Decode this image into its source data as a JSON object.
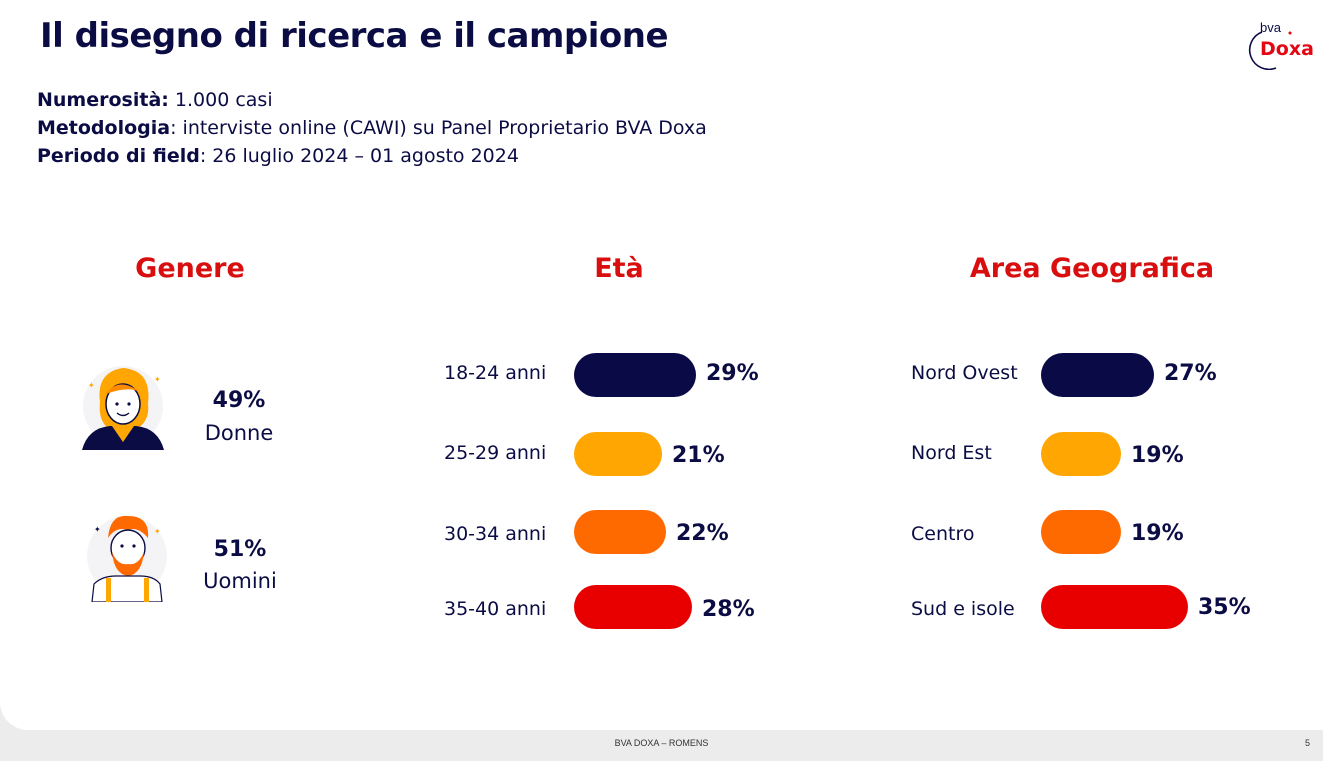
{
  "slide": {
    "title": "Il disegno di ricerca e il campione",
    "logo": {
      "top_text": "bva",
      "bottom_text": "Doxa"
    },
    "info": [
      {
        "label": "Numerosità:",
        "value": " 1.000 casi"
      },
      {
        "label": "Metodologia",
        "value": ": interviste online (CAWI) su Panel Proprietario BVA Doxa"
      },
      {
        "label": "Periodo di field",
        "value": ": 26 luglio 2024 – 01 agosto 2024"
      }
    ],
    "footer": "BVA DOXA – ROMENS",
    "page_number": "5"
  },
  "colors": {
    "navy": "#0a0a46",
    "yellow": "#ffa602",
    "orange": "#ff6a00",
    "red": "#e80000",
    "title_red": "#d90f0f"
  },
  "chart_data": [
    {
      "type": "pictogram",
      "title": "Genere",
      "categories": [
        "Donne",
        "Uomini"
      ],
      "values": [
        49,
        51
      ],
      "value_labels": [
        "49%",
        "51%"
      ],
      "icons": [
        "woman-avatar-icon",
        "man-avatar-icon"
      ]
    },
    {
      "type": "bar",
      "orientation": "horizontal",
      "title": "Età",
      "categories": [
        "18-24 anni",
        "25-29 anni",
        "30-34 anni",
        "35-40 anni"
      ],
      "values": [
        29,
        21,
        22,
        28
      ],
      "value_labels": [
        "29%",
        "21%",
        "22%",
        "28%"
      ],
      "bar_colors": [
        "#0a0a46",
        "#ffa602",
        "#ff6a00",
        "#e80000"
      ]
    },
    {
      "type": "bar",
      "orientation": "horizontal",
      "title": "Area Geografica",
      "categories": [
        "Nord Ovest",
        "Nord Est",
        "Centro",
        "Sud e isole"
      ],
      "values": [
        27,
        19,
        19,
        35
      ],
      "value_labels": [
        "27%",
        "19%",
        "19%",
        "35%"
      ],
      "bar_colors": [
        "#0a0a46",
        "#ffa602",
        "#ff6a00",
        "#e80000"
      ]
    }
  ]
}
